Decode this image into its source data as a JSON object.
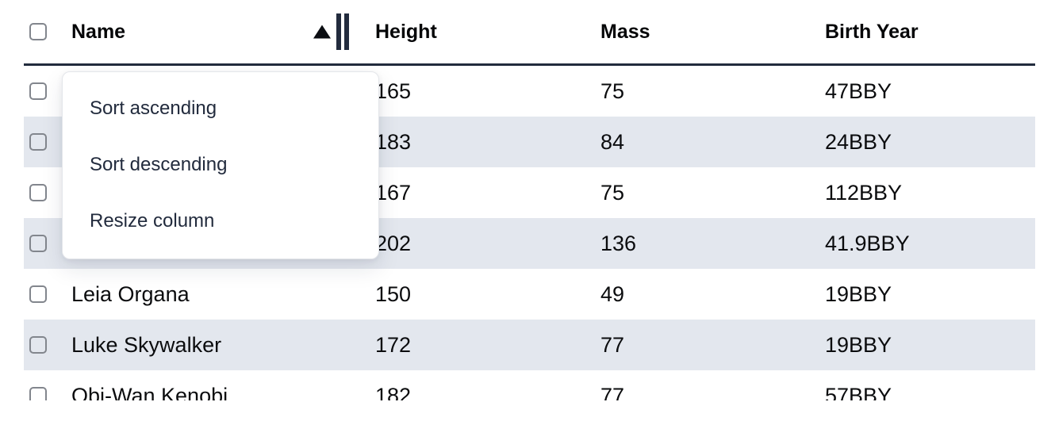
{
  "table": {
    "columns": [
      {
        "label": "Name",
        "sorted": "ascending"
      },
      {
        "label": "Height"
      },
      {
        "label": "Mass"
      },
      {
        "label": "Birth Year"
      }
    ],
    "rows": [
      {
        "name": "",
        "height": "165",
        "mass": "75",
        "birth_year": "47BBY"
      },
      {
        "name": "",
        "height": "183",
        "mass": "84",
        "birth_year": "24BBY"
      },
      {
        "name": "",
        "height": "167",
        "mass": "75",
        "birth_year": "112BBY"
      },
      {
        "name": "",
        "height": "202",
        "mass": "136",
        "birth_year": "41.9BBY"
      },
      {
        "name": "Leia Organa",
        "height": "150",
        "mass": "49",
        "birth_year": "19BBY"
      },
      {
        "name": "Luke Skywalker",
        "height": "172",
        "mass": "77",
        "birth_year": "19BBY"
      },
      {
        "name": "Obi-Wan Kenobi",
        "height": "182",
        "mass": "77",
        "birth_year": "57BBY"
      }
    ]
  },
  "context_menu": {
    "items": [
      {
        "label": "Sort ascending"
      },
      {
        "label": "Sort descending"
      },
      {
        "label": "Resize column"
      }
    ]
  },
  "icons": {
    "sort_indicator": "sort-ascending-triangle",
    "resize_handle": "double-vertical-bars"
  },
  "colors": {
    "header_border": "#222b3d",
    "row_stripe": "#e3e7ee",
    "menu_text": "#222b3d",
    "checkbox_border": "#82868d"
  }
}
